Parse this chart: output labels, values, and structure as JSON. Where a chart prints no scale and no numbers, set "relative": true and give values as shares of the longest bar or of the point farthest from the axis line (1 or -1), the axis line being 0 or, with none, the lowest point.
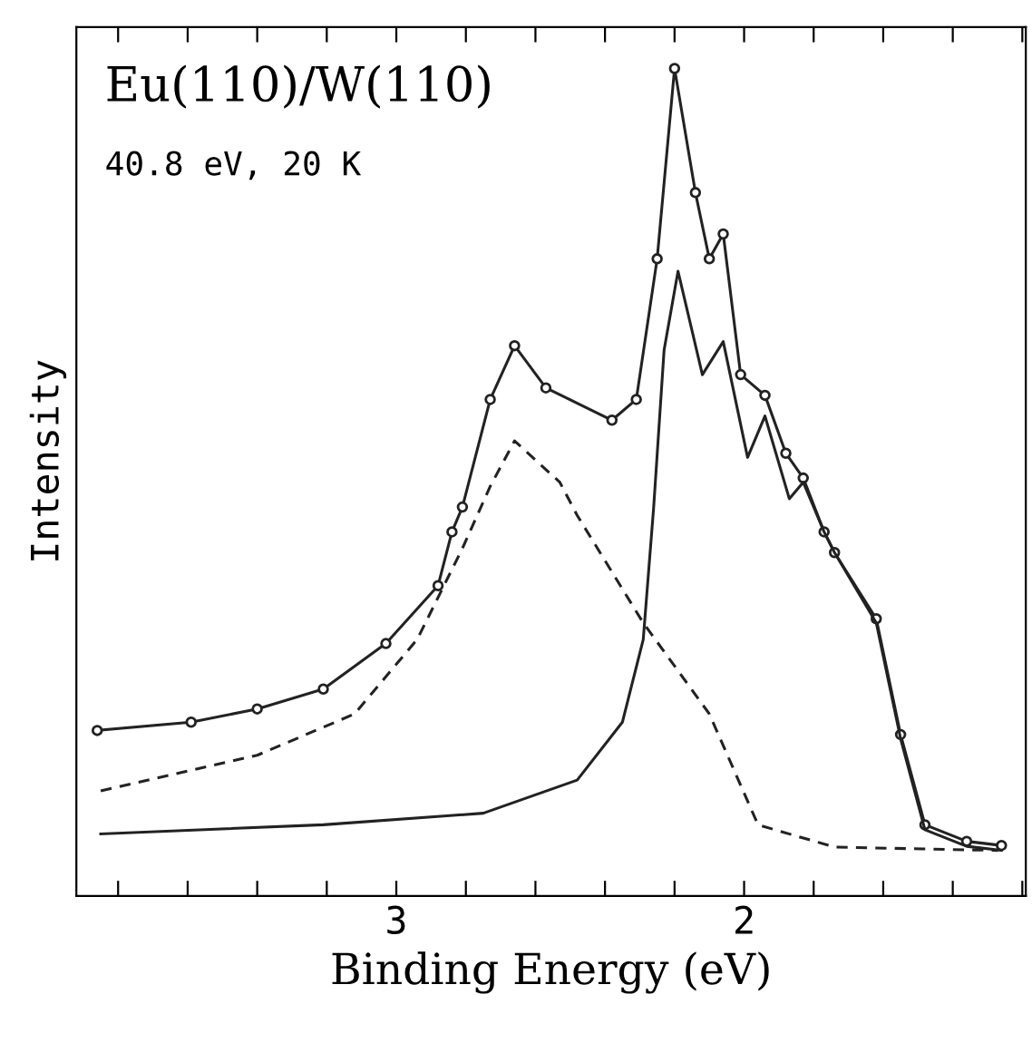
{
  "chart_data": {
    "type": "line",
    "relative": true,
    "xlabel": "Binding Energy (eV)",
    "ylabel": "Intensity",
    "annotations": [
      "Eu(110)/W(110)",
      "40.8 eV, 20 K"
    ],
    "xlim": [
      3.92,
      1.19
    ],
    "xticks": [
      {
        "value": 3.8,
        "label": null
      },
      {
        "value": 3.6,
        "label": null
      },
      {
        "value": 3.4,
        "label": null
      },
      {
        "value": 3.2,
        "label": null
      },
      3,
      {
        "value": 2.8,
        "label": null
      },
      {
        "value": 2.6,
        "label": null
      },
      {
        "value": 2.4,
        "label": null
      },
      {
        "value": 2.2,
        "label": null
      },
      2,
      {
        "value": 1.8,
        "label": null
      },
      {
        "value": 1.6,
        "label": null
      },
      {
        "value": 1.4,
        "label": null
      },
      {
        "value": 1.2,
        "label": null
      }
    ],
    "grid": false,
    "legend": false,
    "series": [
      {
        "color": "#222222",
        "marker": "circle",
        "line_style": "solid",
        "x": [
          3.86,
          3.59,
          3.4,
          3.21,
          3.03,
          2.88,
          2.84,
          2.81,
          2.73,
          2.66,
          2.57,
          2.38,
          2.31,
          2.25,
          2.2,
          2.14,
          2.1,
          2.06,
          2.01,
          1.94,
          1.88,
          1.83,
          1.77,
          1.74,
          1.62,
          1.55,
          1.48,
          1.36,
          1.26
        ],
        "values": [
          0.2,
          0.21,
          0.226,
          0.25,
          0.305,
          0.375,
          0.44,
          0.47,
          0.6,
          0.665,
          0.614,
          0.575,
          0.6,
          0.77,
          1.0,
          0.85,
          0.77,
          0.8,
          0.63,
          0.605,
          0.535,
          0.505,
          0.44,
          0.415,
          0.335,
          0.195,
          0.086,
          0.066,
          0.061
        ]
      },
      {
        "color": "#222222",
        "marker": "none",
        "line_style": "dashed",
        "x": [
          3.85,
          3.4,
          3.12,
          2.94,
          2.81,
          2.73,
          2.66,
          2.53,
          2.48,
          2.29,
          2.1,
          1.96,
          1.74,
          1.27
        ],
        "values": [
          0.127,
          0.17,
          0.22,
          0.31,
          0.42,
          0.495,
          0.55,
          0.5,
          0.46,
          0.33,
          0.22,
          0.086,
          0.059,
          0.055
        ]
      },
      {
        "color": "#222222",
        "marker": "none",
        "line_style": "solid",
        "x": [
          3.85,
          3.21,
          2.75,
          2.48,
          2.35,
          2.29,
          2.26,
          2.23,
          2.19,
          2.12,
          2.06,
          1.99,
          1.94,
          1.87,
          1.83,
          1.77,
          1.74,
          1.62,
          1.55,
          1.48,
          1.36,
          1.26
        ],
        "values": [
          0.075,
          0.086,
          0.1,
          0.14,
          0.21,
          0.31,
          0.47,
          0.66,
          0.755,
          0.63,
          0.67,
          0.53,
          0.58,
          0.48,
          0.5,
          0.44,
          0.415,
          0.33,
          0.19,
          0.08,
          0.06,
          0.055
        ]
      }
    ]
  }
}
